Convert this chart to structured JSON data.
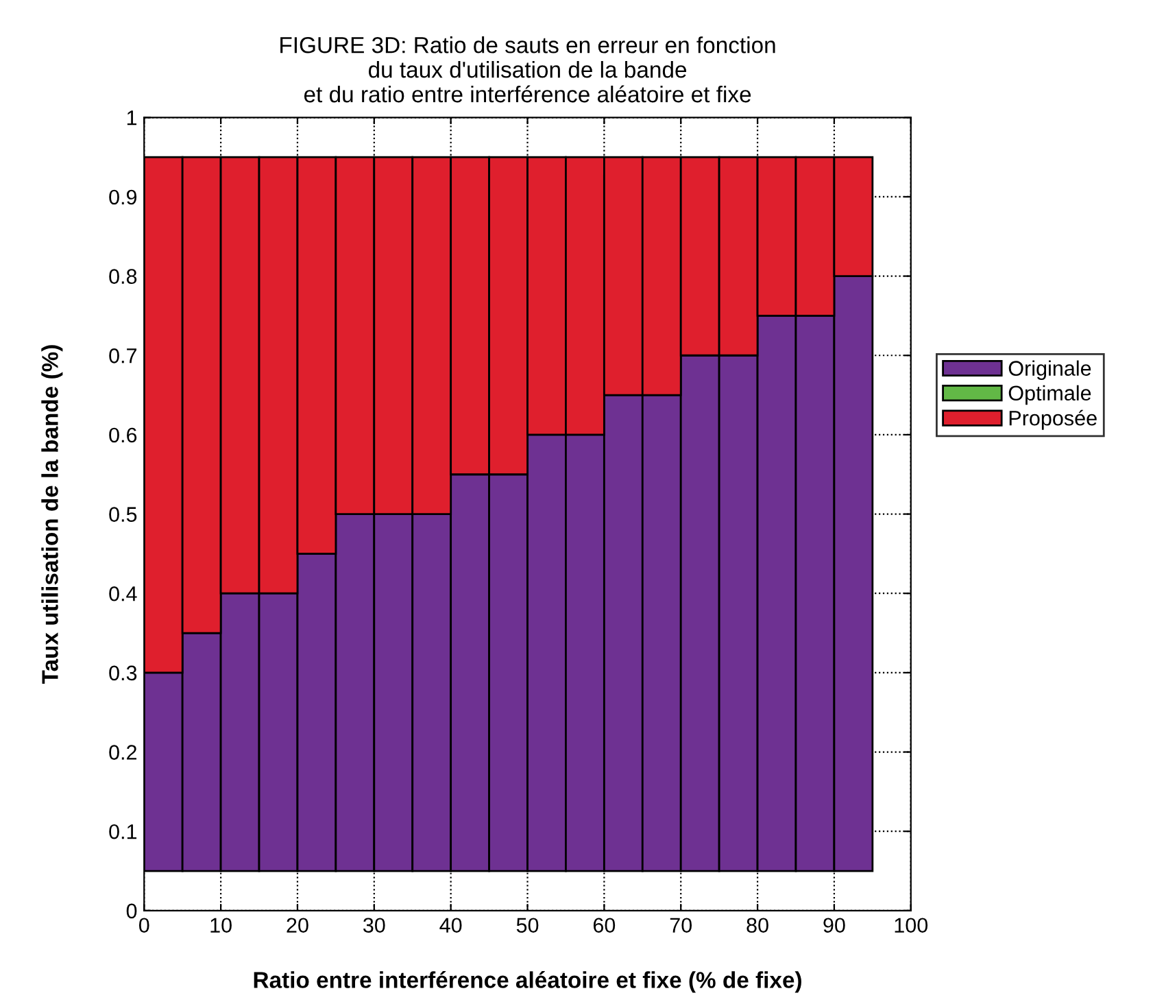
{
  "chart_data": {
    "type": "bar",
    "title": "FIGURE 3D: Ratio de sauts en erreur en fonction\ndu taux d'utilisation de la bande\net du ratio entre interférence aléatoire et fixe",
    "xlabel": "Ratio entre interférence aléatoire et fixe (% de fixe)",
    "ylabel": "Taux utilisation de la bande (%)",
    "x": [
      2.5,
      7.5,
      12.5,
      17.5,
      22.5,
      27.5,
      32.5,
      37.5,
      42.5,
      47.5,
      52.5,
      57.5,
      62.5,
      67.5,
      72.5,
      77.5,
      82.5,
      87.5,
      92.5
    ],
    "series": [
      {
        "name": "Originale",
        "color": "#6e3192",
        "base": [
          0.05,
          0.05,
          0.05,
          0.05,
          0.05,
          0.05,
          0.05,
          0.05,
          0.05,
          0.05,
          0.05,
          0.05,
          0.05,
          0.05,
          0.05,
          0.05,
          0.05,
          0.05,
          0.05
        ],
        "values": [
          0.25,
          0.3,
          0.35,
          0.35,
          0.4,
          0.45,
          0.45,
          0.45,
          0.5,
          0.5,
          0.55,
          0.55,
          0.6,
          0.6,
          0.65,
          0.65,
          0.7,
          0.7,
          0.75
        ]
      },
      {
        "name": "Optimale",
        "color": "#62b846",
        "values": [
          null,
          null,
          null,
          null,
          null,
          null,
          null,
          null,
          null,
          null,
          null,
          null,
          null,
          null,
          null,
          null,
          null,
          null,
          null
        ]
      },
      {
        "name": "Proposée",
        "color": "#df1f2d",
        "base": [
          0.3,
          0.35,
          0.4,
          0.4,
          0.45,
          0.5,
          0.5,
          0.5,
          0.55,
          0.55,
          0.6,
          0.6,
          0.65,
          0.65,
          0.7,
          0.7,
          0.75,
          0.75,
          0.8
        ],
        "values": [
          0.65,
          0.6,
          0.55,
          0.55,
          0.5,
          0.45,
          0.45,
          0.45,
          0.4,
          0.4,
          0.35,
          0.35,
          0.3,
          0.3,
          0.25,
          0.25,
          0.2,
          0.2,
          0.15
        ]
      }
    ],
    "xlim": [
      0,
      100
    ],
    "xticks": [
      0,
      10,
      20,
      30,
      40,
      50,
      60,
      70,
      80,
      90,
      100
    ],
    "ylim": [
      0,
      1
    ],
    "yticks": [
      0,
      0.1,
      0.2,
      0.3,
      0.4,
      0.5,
      0.6,
      0.7,
      0.8,
      0.9,
      1
    ],
    "grid": true,
    "legend": "right"
  }
}
